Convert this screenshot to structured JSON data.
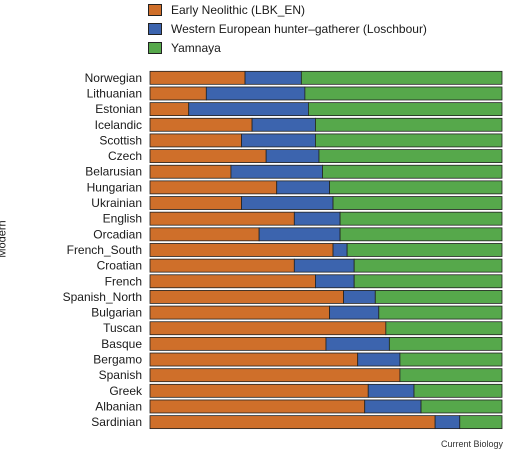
{
  "chart_data": {
    "type": "bar",
    "orientation": "horizontal-stacked",
    "ylabel": "Modern",
    "xlim": [
      0,
      1
    ],
    "grid": false,
    "legend_position": "top",
    "series": [
      {
        "name": "Early Neolithic (LBK_EN)",
        "color": "#cf6f2a"
      },
      {
        "name": "Western European hunter–gatherer (Loschbour)",
        "color": "#3c64ae"
      },
      {
        "name": "Yamnaya",
        "color": "#56a84b"
      }
    ],
    "categories": [
      "Norwegian",
      "Lithuanian",
      "Estonian",
      "Icelandic",
      "Scottish",
      "Czech",
      "Belarusian",
      "Hungarian",
      "Ukrainian",
      "English",
      "Orcadian",
      "French_South",
      "Croatian",
      "French",
      "Spanish_North",
      "Bulgarian",
      "Tuscan",
      "Basque",
      "Bergamo",
      "Spanish",
      "Greek",
      "Albanian",
      "Sardinian"
    ],
    "values": [
      [
        0.27,
        0.16,
        0.57
      ],
      [
        0.16,
        0.28,
        0.56
      ],
      [
        0.11,
        0.34,
        0.55
      ],
      [
        0.29,
        0.18,
        0.53
      ],
      [
        0.26,
        0.21,
        0.53
      ],
      [
        0.33,
        0.15,
        0.52
      ],
      [
        0.23,
        0.26,
        0.51
      ],
      [
        0.36,
        0.15,
        0.49
      ],
      [
        0.26,
        0.26,
        0.48
      ],
      [
        0.41,
        0.13,
        0.46
      ],
      [
        0.31,
        0.23,
        0.46
      ],
      [
        0.52,
        0.04,
        0.44
      ],
      [
        0.41,
        0.17,
        0.42
      ],
      [
        0.47,
        0.11,
        0.42
      ],
      [
        0.55,
        0.09,
        0.36
      ],
      [
        0.51,
        0.14,
        0.35
      ],
      [
        0.67,
        0.0,
        0.33
      ],
      [
        0.5,
        0.18,
        0.32
      ],
      [
        0.59,
        0.12,
        0.29
      ],
      [
        0.71,
        0.0,
        0.29
      ],
      [
        0.62,
        0.13,
        0.25
      ],
      [
        0.61,
        0.16,
        0.23
      ],
      [
        0.81,
        0.07,
        0.12
      ]
    ]
  },
  "credit": "Current Biology"
}
